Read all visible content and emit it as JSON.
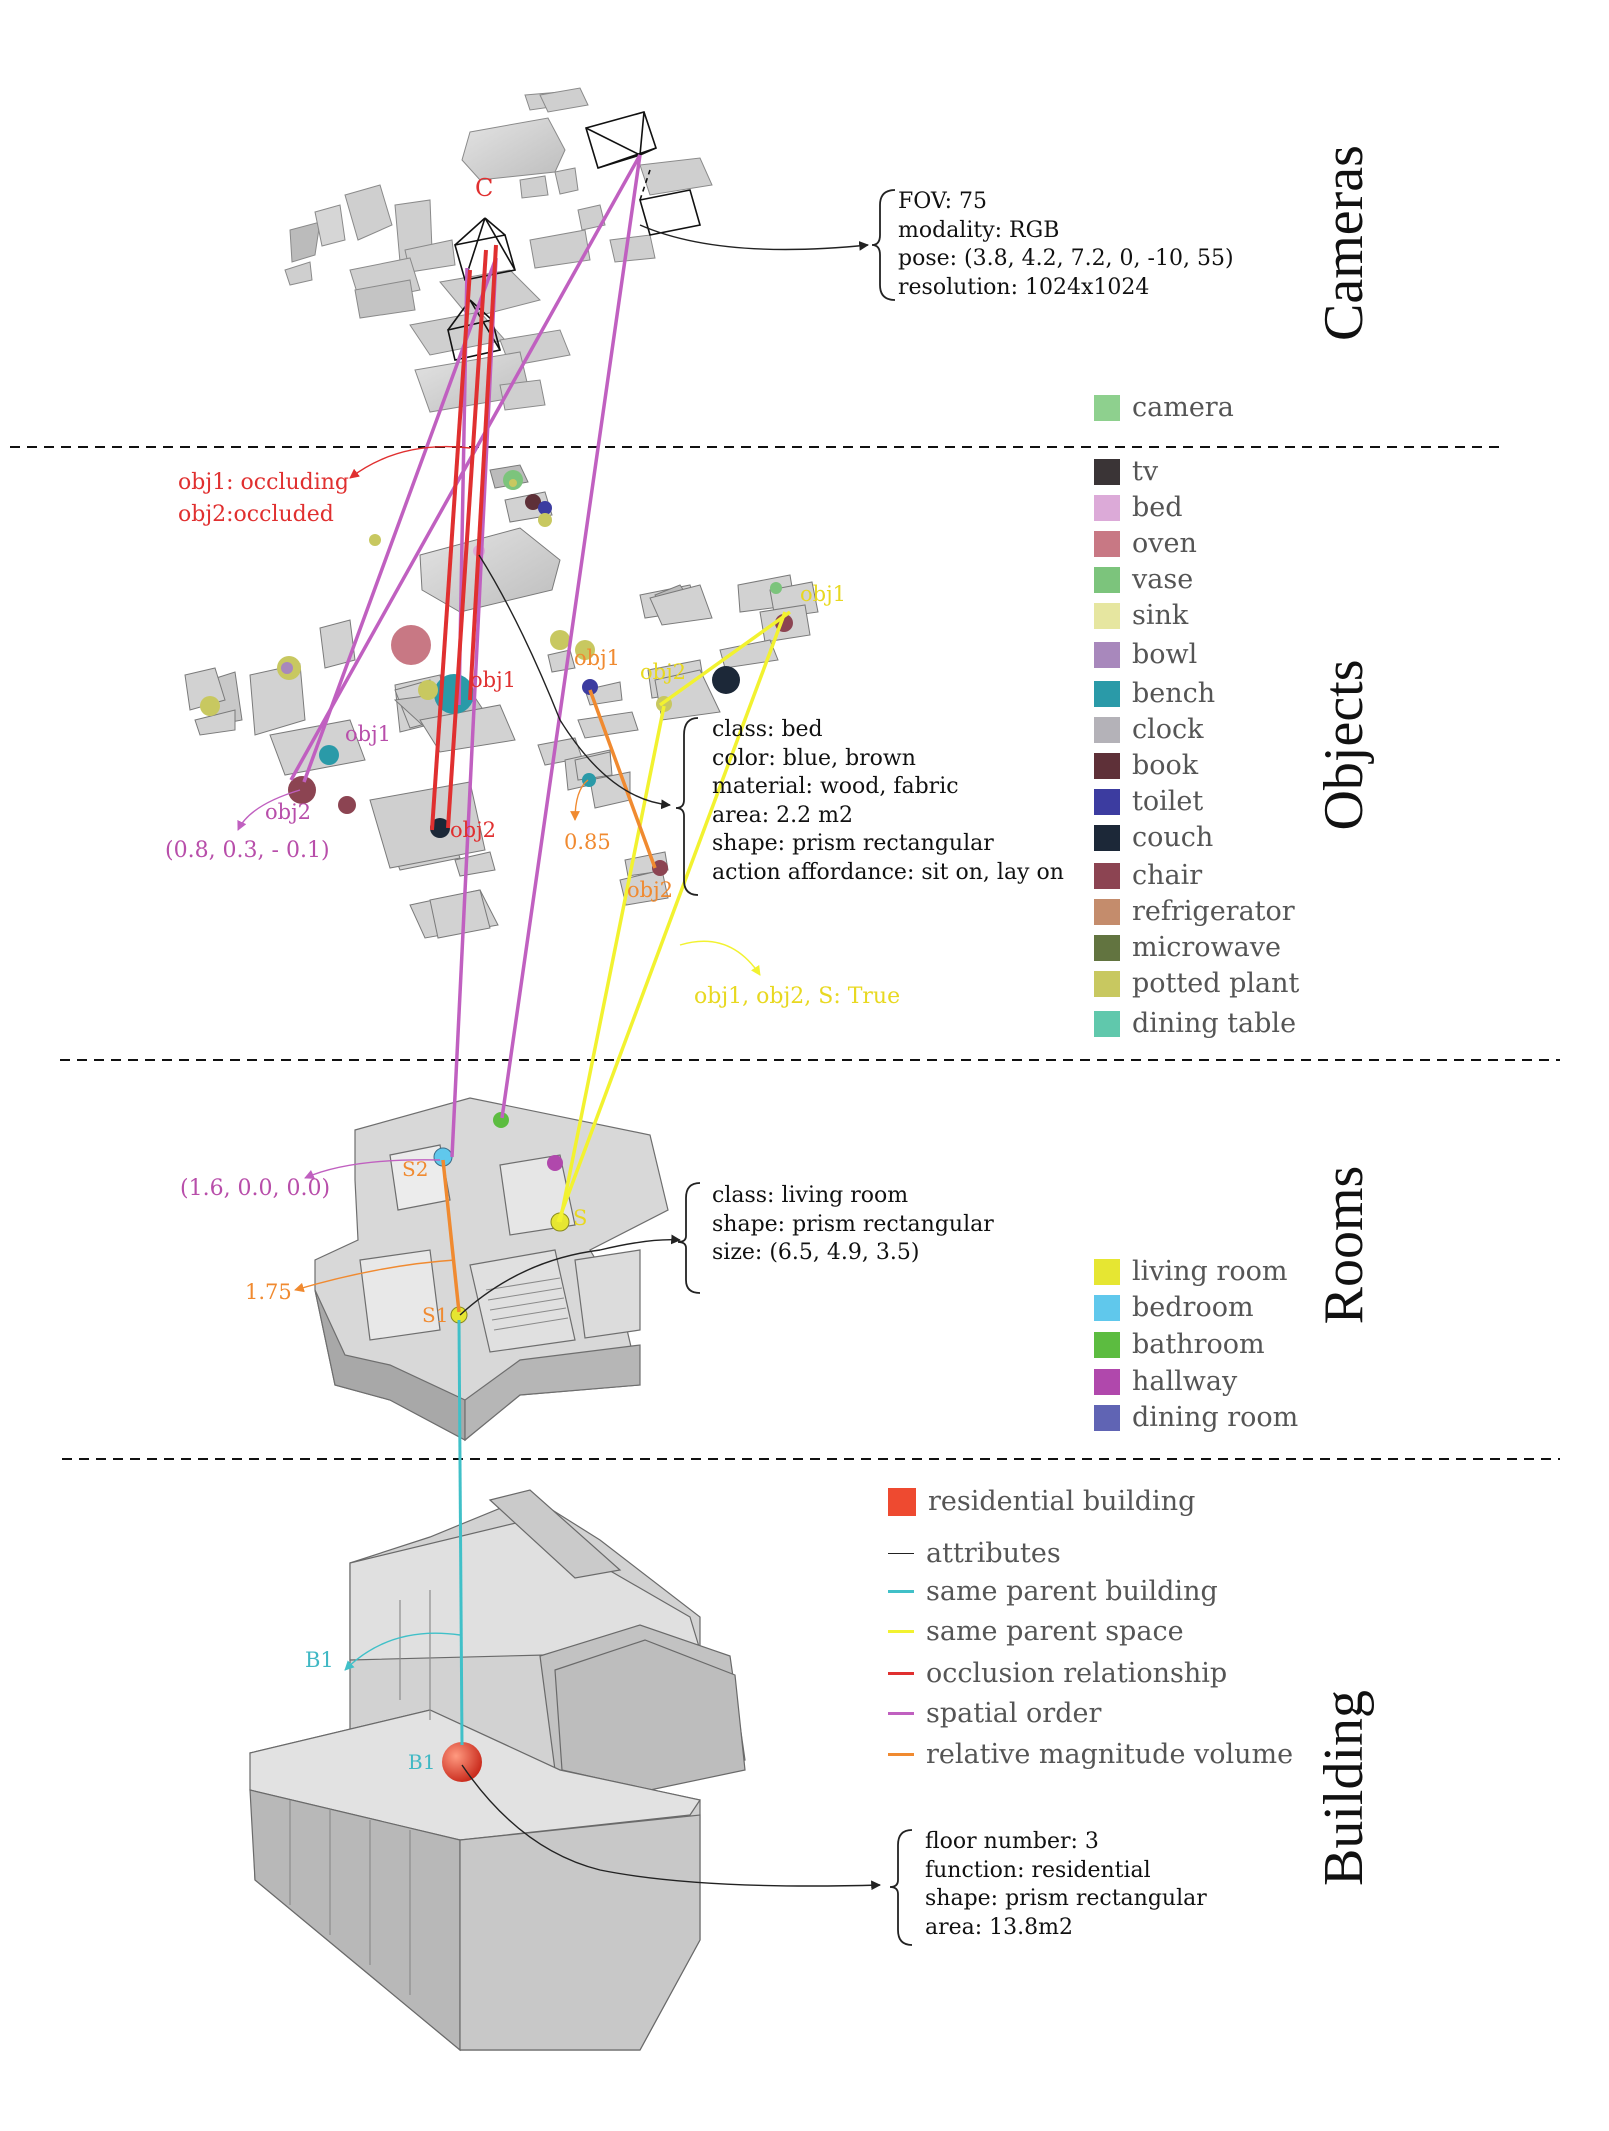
{
  "colors": {
    "occlusion": "#e03030",
    "spatial_order": "#c060c0",
    "same_parent_space": "#f2f230",
    "relative_magnitude": "#f08a30",
    "same_parent_building": "#40c0c8",
    "attributes": "#222222",
    "building_marker": "#e84a2c"
  },
  "layers": {
    "cameras": "Cameras",
    "objects": "Objects",
    "rooms": "Rooms",
    "building": "Building"
  },
  "camera_info": [
    "FOV: 75",
    "modality: RGB",
    "pose: (3.8, 4.2, 7.2, 0, -10, 55)",
    "resolution: 1024x1024"
  ],
  "object_info": [
    "class: bed",
    "color: blue, brown",
    "material: wood, fabric",
    "area: 2.2 m2",
    "shape: prism rectangular",
    "action affordance: sit on, lay on"
  ],
  "room_info": [
    "class: living room",
    "shape: prism rectangular",
    "size: (6.5, 4.9, 3.5)"
  ],
  "building_info": [
    "floor number: 3",
    "function: residential",
    "shape: prism rectangular",
    "area: 13.8m2"
  ],
  "annotations": {
    "camera_c": "C",
    "occluding": "obj1: occluding",
    "occluded": "obj2:occluded",
    "red_obj1": "obj1",
    "red_obj2": "obj2",
    "pink_obj1": "obj1",
    "pink_obj2": "obj2",
    "pink_vec": "(0.8, 0.3, - 0.1)",
    "orange_obj1": "obj1",
    "orange_obj2": "obj2",
    "orange_val": "0.85",
    "yellow_obj1": "obj1",
    "yellow_obj2": "obj2",
    "yellow_true": "obj1, obj2, S: True",
    "room_vec": "(1.6, 0.0, 0.0)",
    "room_s2": "S2",
    "room_s": "S",
    "room_s1": "S1",
    "room_ratio": "1.75",
    "b1_left": "B1",
    "b1_marker": "B1"
  },
  "legend_camera": [
    {
      "label": "camera",
      "color": "#8ed08e"
    }
  ],
  "legend_objects": [
    {
      "label": "tv",
      "color": "#3a3436"
    },
    {
      "label": "bed",
      "color": "#dcaad8"
    },
    {
      "label": "oven",
      "color": "#c87884"
    },
    {
      "label": "vase",
      "color": "#7cc47c"
    },
    {
      "label": "sink",
      "color": "#e6e6a0"
    },
    {
      "label": "bowl",
      "color": "#a888bc"
    },
    {
      "label": "bench",
      "color": "#2a9aa8"
    },
    {
      "label": "clock",
      "color": "#b4b2b8"
    },
    {
      "label": "book",
      "color": "#5e3038"
    },
    {
      "label": "toilet",
      "color": "#3c3ca0"
    },
    {
      "label": "couch",
      "color": "#1c2838"
    },
    {
      "label": "chair",
      "color": "#8c4452"
    },
    {
      "label": "refrigerator",
      "color": "#c48c6c"
    },
    {
      "label": "microwave",
      "color": "#627440"
    },
    {
      "label": "potted plant",
      "color": "#c8c860"
    },
    {
      "label": "dining table",
      "color": "#60c8ac"
    }
  ],
  "legend_rooms": [
    {
      "label": "living room",
      "color": "#e6e632"
    },
    {
      "label": "bedroom",
      "color": "#60c8ec"
    },
    {
      "label": "bathroom",
      "color": "#5cbc40"
    },
    {
      "label": "hallway",
      "color": "#b048ac"
    },
    {
      "label": "dining room",
      "color": "#6064b4"
    }
  ],
  "legend_building": {
    "label": "residential building",
    "color": "#ee4a30"
  },
  "legend_edges": [
    {
      "label": "attributes",
      "color": "#222222"
    },
    {
      "label": "same parent building",
      "color": "#40c0c8"
    },
    {
      "label": "same parent space",
      "color": "#f2f230"
    },
    {
      "label": "occlusion relationship",
      "color": "#e03030"
    },
    {
      "label": "spatial order",
      "color": "#c060c0"
    },
    {
      "label": "relative magnitude volume",
      "color": "#f08a30"
    }
  ]
}
